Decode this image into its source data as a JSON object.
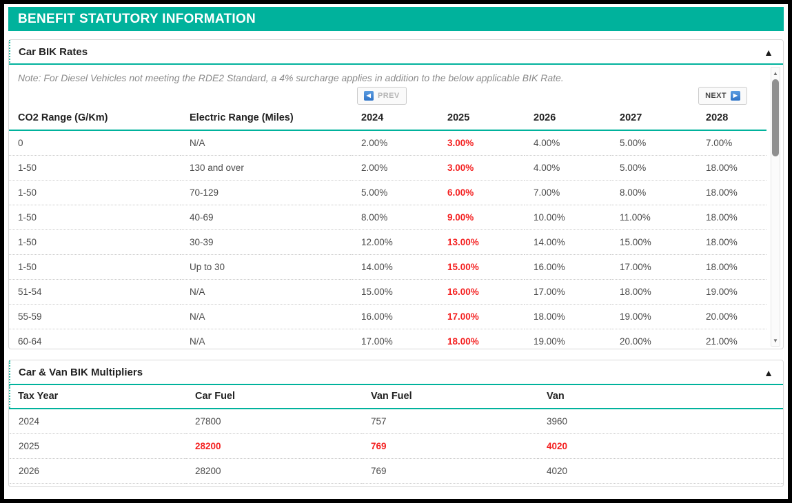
{
  "colors": {
    "accent": "#00b29c",
    "highlight_red": "#f42020",
    "pager_icon_blue": "#3a7bc8"
  },
  "title_bar": {
    "title": "BENEFIT STATUTORY INFORMATION"
  },
  "icons": {
    "collapse": "collapse-arrow-up-icon",
    "prev": "arrow-left-icon",
    "next": "arrow-right-icon",
    "scroll_up": "scroll-up-arrow-icon",
    "scroll_down": "scroll-down-arrow-icon"
  },
  "sections": [
    {
      "title": "Car BIK Rates",
      "note": "Note: For Diesel Vehicles not meeting the RDE2 Standard, a 4% surcharge applies in addition to the below applicable BIK Rate.",
      "pagination": {
        "prev_label": "PREV",
        "next_label": "NEXT",
        "prev_enabled": false,
        "next_enabled": true
      },
      "table": {
        "headers": [
          "CO2 Range (G/Km)",
          "Electric Range (Miles)",
          "2024",
          "2025",
          "2026",
          "2027",
          "2028"
        ],
        "rows": [
          [
            "0",
            "N/A",
            "2.00%",
            "3.00%",
            "4.00%",
            "5.00%",
            "7.00%"
          ],
          [
            "1-50",
            "130 and over",
            "2.00%",
            "3.00%",
            "4.00%",
            "5.00%",
            "18.00%"
          ],
          [
            "1-50",
            "70-129",
            "5.00%",
            "6.00%",
            "7.00%",
            "8.00%",
            "18.00%"
          ],
          [
            "1-50",
            "40-69",
            "8.00%",
            "9.00%",
            "10.00%",
            "11.00%",
            "18.00%"
          ],
          [
            "1-50",
            "30-39",
            "12.00%",
            "13.00%",
            "14.00%",
            "15.00%",
            "18.00%"
          ],
          [
            "1-50",
            "Up to 30",
            "14.00%",
            "15.00%",
            "16.00%",
            "17.00%",
            "18.00%"
          ],
          [
            "51-54",
            "N/A",
            "15.00%",
            "16.00%",
            "17.00%",
            "18.00%",
            "19.00%"
          ],
          [
            "55-59",
            "N/A",
            "16.00%",
            "17.00%",
            "18.00%",
            "19.00%",
            "20.00%"
          ],
          [
            "60-64",
            "N/A",
            "17.00%",
            "18.00%",
            "19.00%",
            "20.00%",
            "21.00%"
          ]
        ],
        "highlight": {
          "type": "col",
          "index": 3
        }
      }
    },
    {
      "title": "Car & Van BIK Multipliers",
      "table": {
        "headers": [
          "Tax Year",
          "Car Fuel",
          "Van Fuel",
          "Van"
        ],
        "rows": [
          [
            "2024",
            "27800",
            "757",
            "3960"
          ],
          [
            "2025",
            "28200",
            "769",
            "4020"
          ],
          [
            "2026",
            "28200",
            "769",
            "4020"
          ]
        ],
        "highlight": {
          "type": "row",
          "index": 1
        }
      }
    }
  ]
}
